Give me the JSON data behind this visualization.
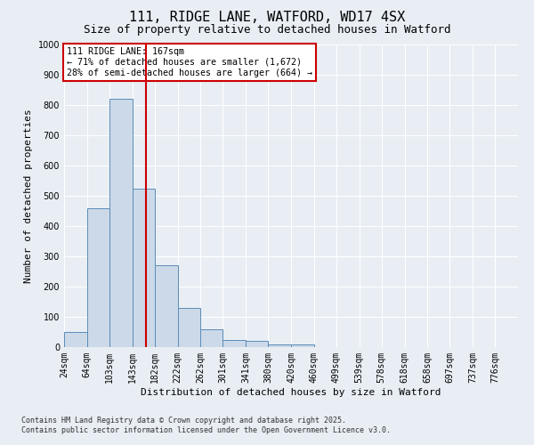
{
  "title1": "111, RIDGE LANE, WATFORD, WD17 4SX",
  "title2": "Size of property relative to detached houses in Watford",
  "xlabel": "Distribution of detached houses by size in Watford",
  "ylabel": "Number of detached properties",
  "footer1": "Contains HM Land Registry data © Crown copyright and database right 2025.",
  "footer2": "Contains public sector information licensed under the Open Government Licence v3.0.",
  "bar_edges": [
    24,
    64,
    103,
    143,
    182,
    222,
    262,
    301,
    341,
    380,
    420,
    460,
    499,
    539,
    578,
    618,
    658,
    697,
    737,
    776,
    816
  ],
  "bar_values": [
    50,
    460,
    820,
    525,
    270,
    130,
    60,
    25,
    20,
    10,
    10,
    0,
    0,
    0,
    0,
    0,
    0,
    0,
    0,
    0
  ],
  "bar_color": "#ccd9e8",
  "bar_edge_color": "#5b8db8",
  "property_size": 167,
  "red_line_color": "#cc0000",
  "annotation_text": "111 RIDGE LANE: 167sqm\n← 71% of detached houses are smaller (1,672)\n28% of semi-detached houses are larger (664) →",
  "annotation_box_color": "#ffffff",
  "annotation_box_edge": "#cc0000",
  "ylim": [
    0,
    1000
  ],
  "yticks": [
    0,
    100,
    200,
    300,
    400,
    500,
    600,
    700,
    800,
    900,
    1000
  ],
  "background_color": "#e8eef4",
  "grid_color": "#ffffff",
  "title1_fontsize": 11,
  "title2_fontsize": 9,
  "axis_label_fontsize": 8,
  "tick_fontsize": 7,
  "footer_fontsize": 6
}
